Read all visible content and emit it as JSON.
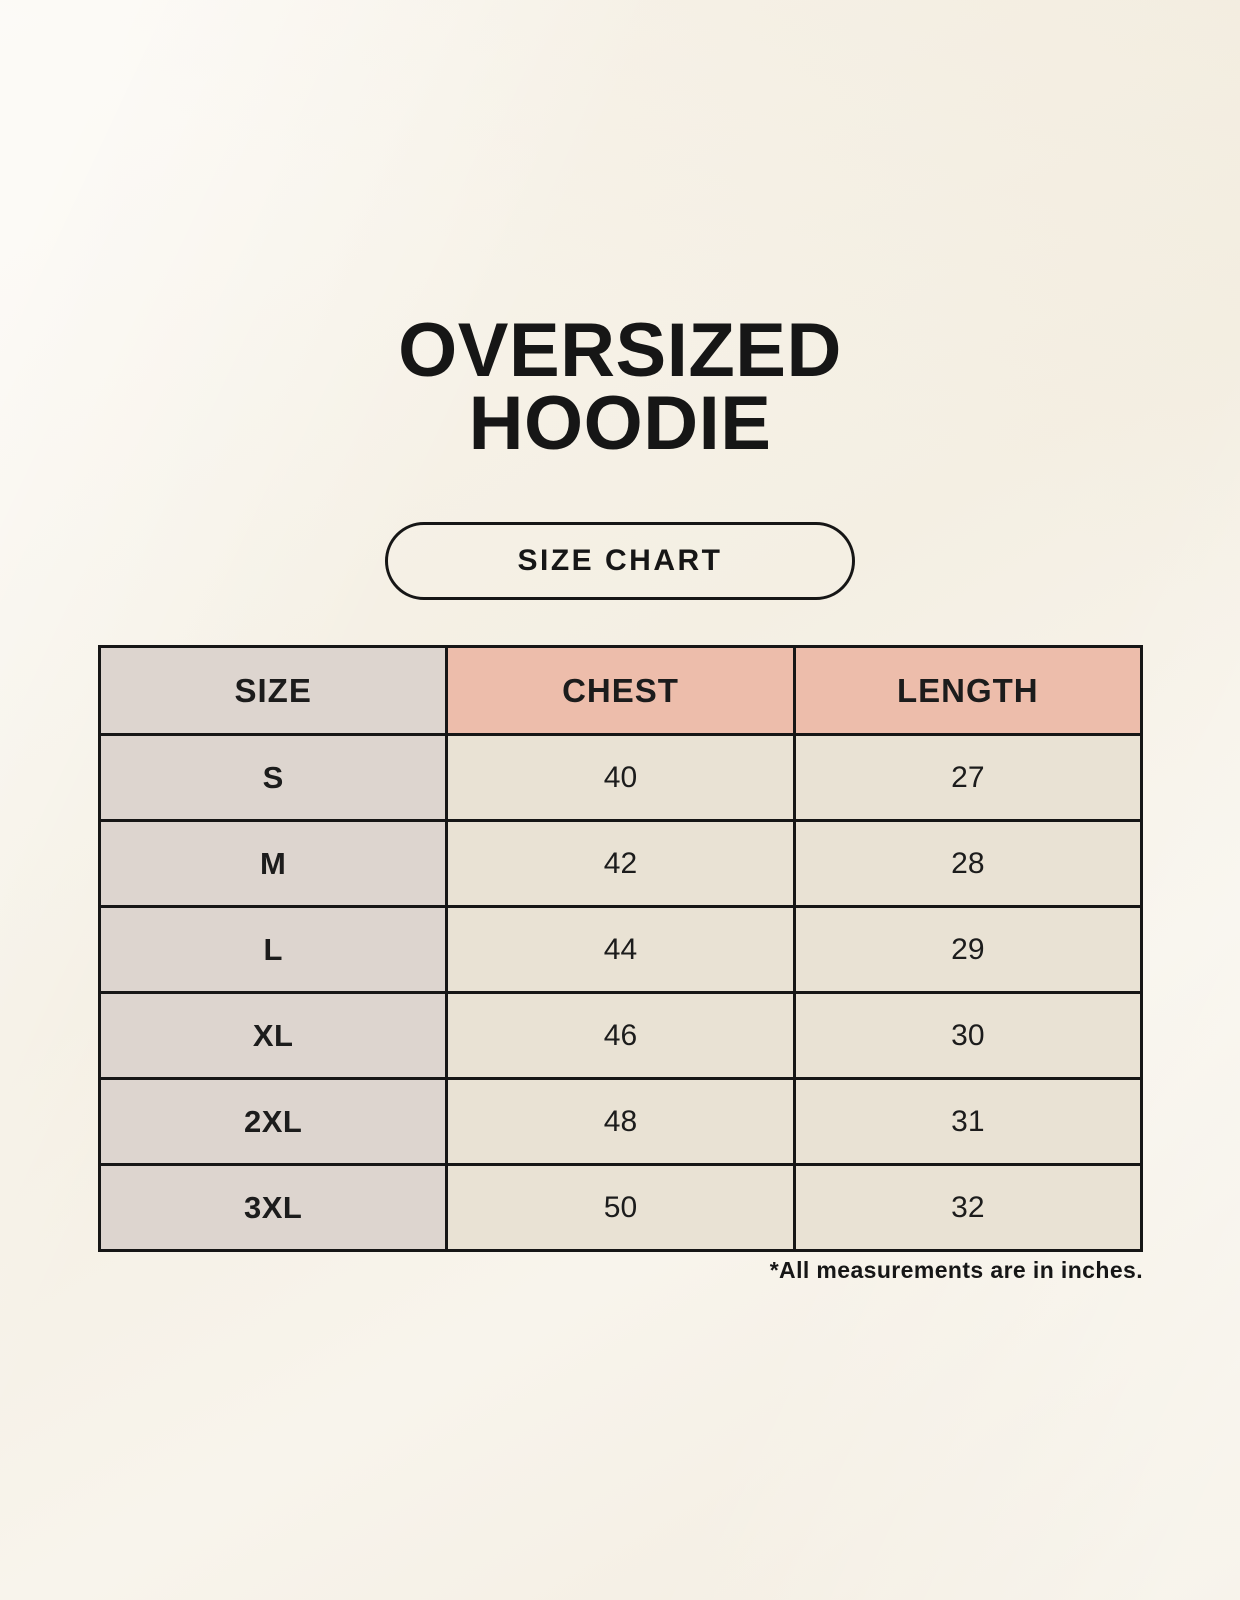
{
  "title": {
    "line1": "OVERSIZED",
    "line2": "HOODIE"
  },
  "badge_label": "SIZE CHART",
  "footnote": "*All measurements are in inches.",
  "chart_data": {
    "type": "table",
    "title": "OVERSIZED HOODIE",
    "subtitle": "SIZE CHART",
    "columns": [
      "SIZE",
      "CHEST",
      "LENGTH"
    ],
    "rows": [
      [
        "S",
        40,
        27
      ],
      [
        "M",
        42,
        28
      ],
      [
        "L",
        44,
        29
      ],
      [
        "XL",
        46,
        30
      ],
      [
        "2XL",
        48,
        31
      ],
      [
        "3XL",
        50,
        32
      ]
    ],
    "note": "*All measurements are in inches.",
    "units": "inches",
    "layout_hints": {
      "header_row_backgrounds": [
        "#ddd5cf",
        "#edbdab",
        "#edbdab"
      ],
      "size_column_background": "#ddd5cf",
      "value_cell_background": "#e9e2d4",
      "grid": true
    }
  },
  "colors": {
    "page_bg": "#f7f2e8",
    "table_border": "#161616",
    "size_column_bg": "#ddd5cf",
    "measure_header_bg": "#edbdab",
    "cell_bg": "#e9e2d4",
    "text": "#1c1c1c"
  }
}
